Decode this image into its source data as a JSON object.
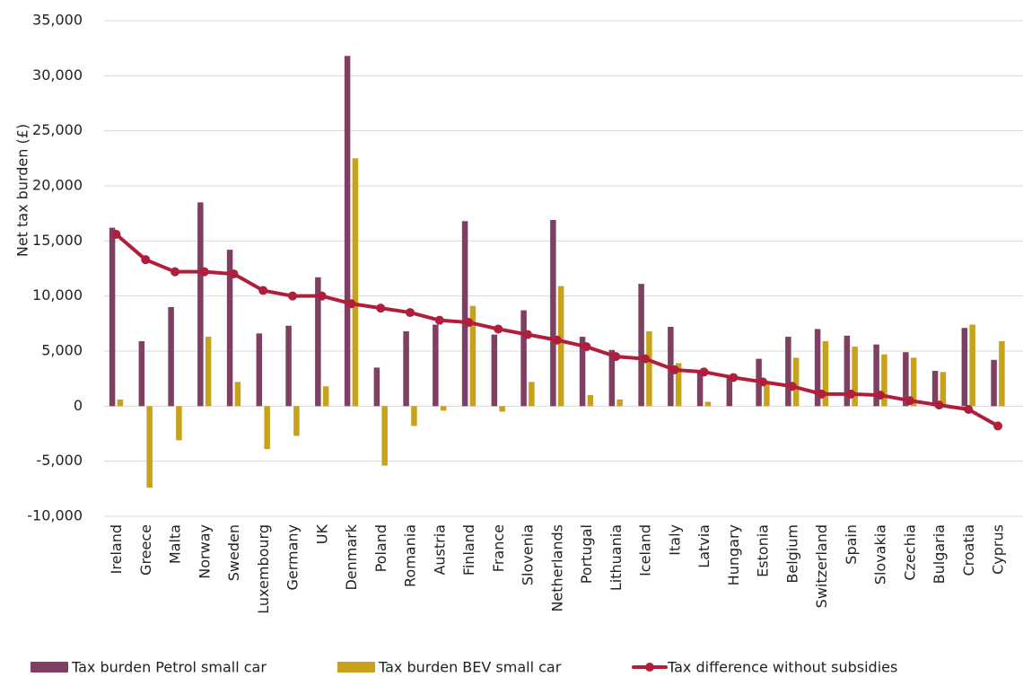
{
  "chart_data": {
    "type": "bar",
    "categories": [
      "Ireland",
      "Greece",
      "Malta",
      "Norway",
      "Sweden",
      "Luxembourg",
      "Germany",
      "UK",
      "Denmark",
      "Poland",
      "Romania",
      "Austria",
      "Finland",
      "France",
      "Slovenia",
      "Netherlands",
      "Portugal",
      "Lithuania",
      "Iceland",
      "Italy",
      "Latvia",
      "Hungary",
      "Estonia",
      "Belgium",
      "Switzerland",
      "Spain",
      "Slovakia",
      "Czechia",
      "Bulgaria",
      "Croatia",
      "Cyprus"
    ],
    "series": [
      {
        "name": "Tax burden Petrol small car",
        "type": "bar",
        "color": "#7f3f62",
        "values": [
          16200,
          5900,
          9000,
          18500,
          14200,
          6600,
          7300,
          11700,
          31800,
          3500,
          6800,
          7400,
          16800,
          6500,
          8700,
          16900,
          6300,
          5100,
          11100,
          7200,
          3300,
          2700,
          4300,
          6300,
          7000,
          6400,
          5600,
          4900,
          3200,
          7100,
          4200
        ]
      },
      {
        "name": "Tax burden BEV small car",
        "type": "bar",
        "color": "#c8a21a",
        "values": [
          600,
          -7400,
          -3100,
          6300,
          2200,
          -3900,
          -2700,
          1800,
          22500,
          -5400,
          -1800,
          -400,
          9100,
          -500,
          2200,
          10900,
          1000,
          600,
          6800,
          3900,
          400,
          0,
          2200,
          4400,
          5900,
          5400,
          4700,
          4400,
          3100,
          7400,
          5900
        ]
      },
      {
        "name": "Tax difference without subsidies",
        "type": "line",
        "color": "#b01e3b",
        "values": [
          15600,
          13300,
          12200,
          12200,
          12000,
          10500,
          10000,
          10000,
          9300,
          8900,
          8500,
          7800,
          7600,
          7000,
          6500,
          6000,
          5400,
          4500,
          4300,
          3300,
          3100,
          2600,
          2200,
          1800,
          1100,
          1100,
          1000,
          500,
          100,
          -300,
          -1800
        ]
      }
    ],
    "ylabel": "Net tax burden (£)",
    "xlabel": "",
    "ylim": [
      -10000,
      35000
    ],
    "ytick_values": [
      -10000,
      -5000,
      0,
      5000,
      10000,
      15000,
      20000,
      25000,
      30000,
      35000
    ],
    "ytick_labels": [
      "-10,000",
      "-5,000",
      "0",
      "5,000",
      "10,000",
      "15,000",
      "20,000",
      "25,000",
      "30,000",
      "35,000"
    ],
    "grid": true,
    "legend": "bottom"
  }
}
